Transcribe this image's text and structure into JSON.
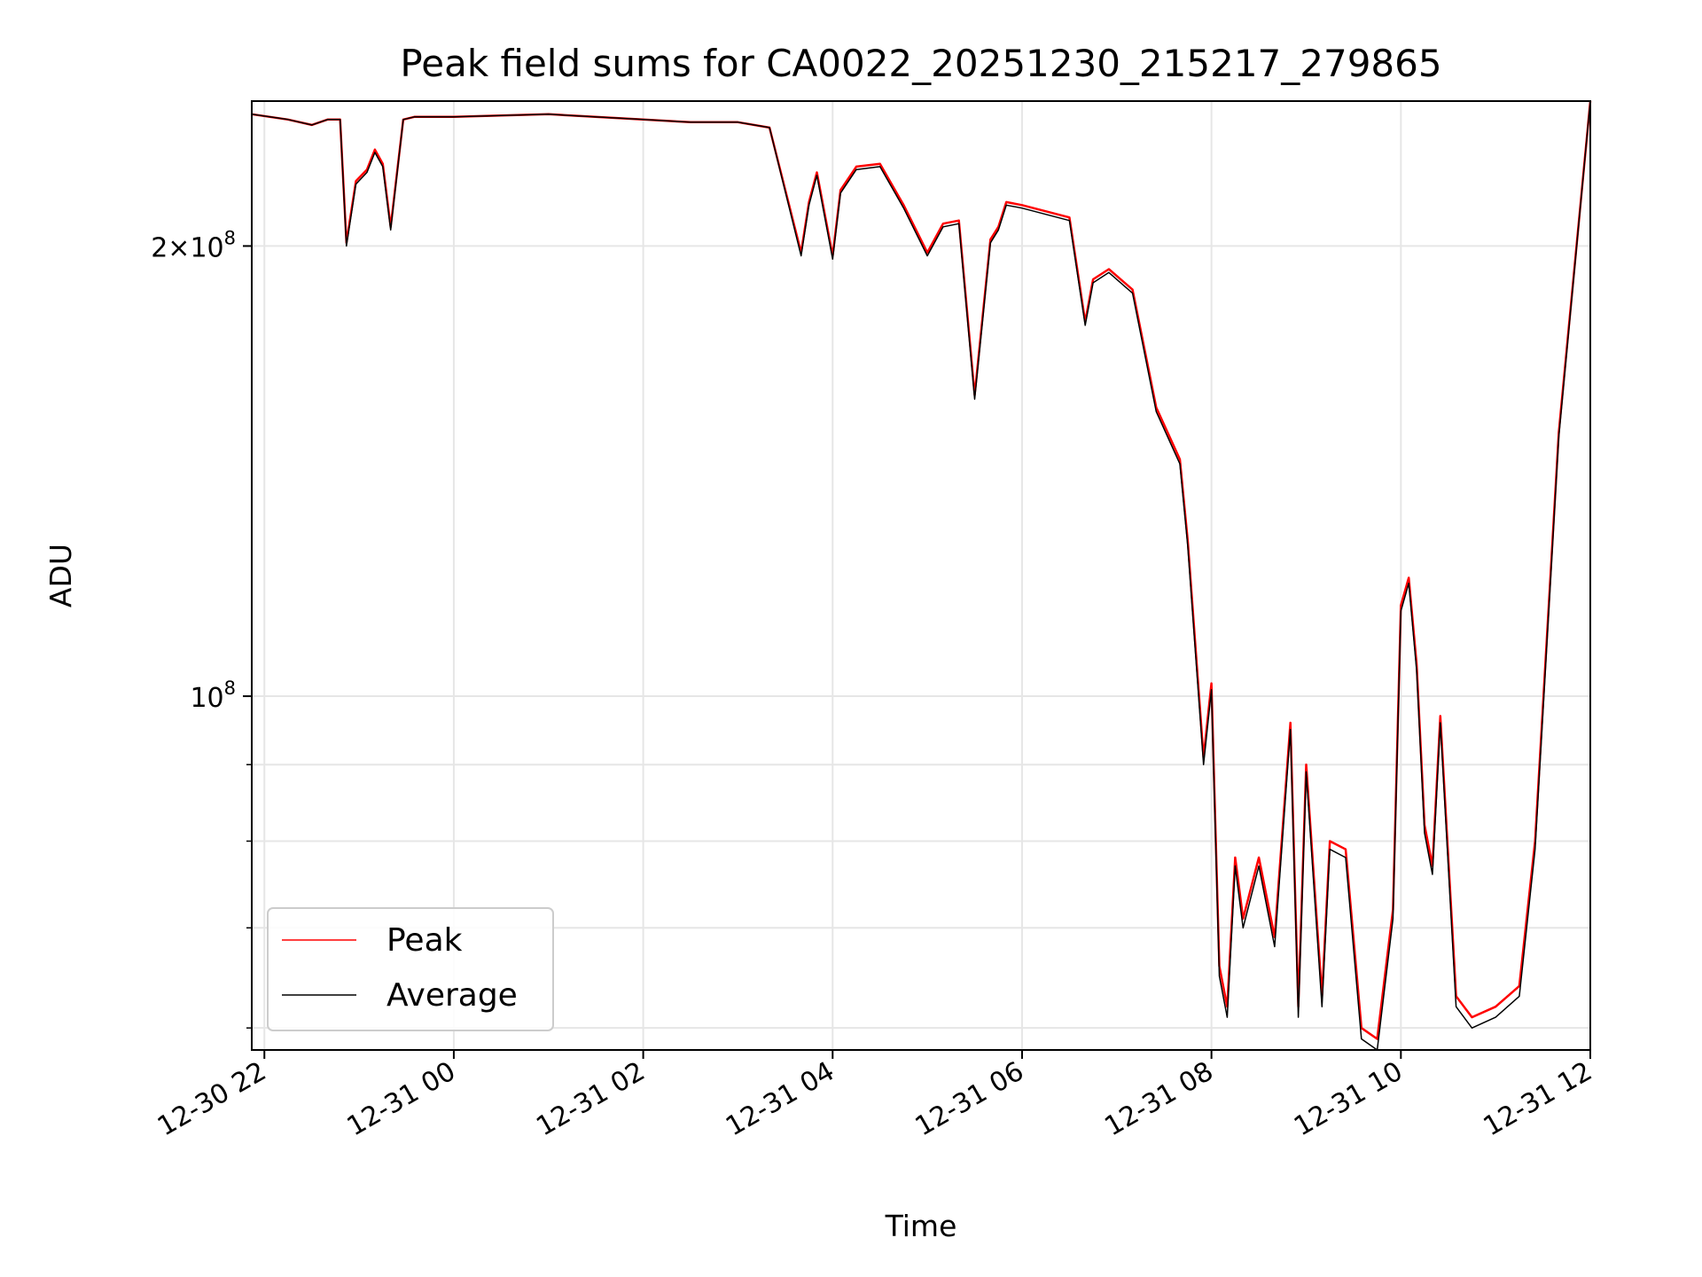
{
  "chart_data": {
    "type": "line",
    "title": "Peak field sums for CA0022_20251230_215217_279865",
    "xlabel": "Time",
    "ylabel": "ADU",
    "y_scale": "log",
    "xlim": [
      "12-30 21:52",
      "12-31 12:00"
    ],
    "ylim": [
      58000000,
      250000000
    ],
    "grid": true,
    "legend_position": "lower left",
    "x_ticks": [
      "12-30 22",
      "12-31 00",
      "12-31 02",
      "12-31 04",
      "12-31 06",
      "12-31 08",
      "12-31 10",
      "12-31 12"
    ],
    "y_ticks": [
      {
        "label_base": "2",
        "label_times": "×",
        "label_exp_base": "10",
        "label_exp": "8",
        "value": 200000000
      },
      {
        "label_base": "",
        "label_times": "",
        "label_exp_base": "10",
        "label_exp": "8",
        "value": 100000000
      }
    ],
    "x": [
      "12-30 21:52",
      "12-30 22:15",
      "12-30 22:30",
      "12-30 22:40",
      "12-30 22:48",
      "12-30 22:52",
      "12-30 22:58",
      "12-30 23:05",
      "12-30 23:10",
      "12-30 23:15",
      "12-30 23:20",
      "12-30 23:28",
      "12-30 23:35",
      "12-31 00:00",
      "12-31 01:00",
      "12-31 02:00",
      "12-31 02:30",
      "12-31 03:00",
      "12-31 03:20",
      "12-31 03:40",
      "12-31 03:45",
      "12-31 03:50",
      "12-31 04:00",
      "12-31 04:05",
      "12-31 04:15",
      "12-31 04:30",
      "12-31 04:45",
      "12-31 05:00",
      "12-31 05:10",
      "12-31 05:20",
      "12-31 05:30",
      "12-31 05:40",
      "12-31 05:45",
      "12-31 05:50",
      "12-31 06:00",
      "12-31 06:30",
      "12-31 06:40",
      "12-31 06:45",
      "12-31 06:55",
      "12-31 07:10",
      "12-31 07:25",
      "12-31 07:40",
      "12-31 07:45",
      "12-31 07:55",
      "12-31 08:00",
      "12-31 08:05",
      "12-31 08:10",
      "12-31 08:15",
      "12-31 08:20",
      "12-31 08:30",
      "12-31 08:40",
      "12-31 08:50",
      "12-31 08:55",
      "12-31 09:00",
      "12-31 09:10",
      "12-31 09:15",
      "12-31 09:25",
      "12-31 09:35",
      "12-31 09:45",
      "12-31 09:55",
      "12-31 10:00",
      "12-31 10:05",
      "12-31 10:10",
      "12-31 10:15",
      "12-31 10:20",
      "12-31 10:25",
      "12-31 10:35",
      "12-31 10:45",
      "12-31 11:00",
      "12-31 11:15",
      "12-31 11:25",
      "12-31 11:40",
      "12-31 12:00"
    ],
    "series": [
      {
        "name": "Peak",
        "color": "#ff0000",
        "values": [
          245000000,
          243000000,
          241000000,
          243000000,
          243000000,
          201000000,
          221000000,
          225000000,
          232000000,
          227000000,
          206000000,
          243000000,
          244000000,
          244000000,
          245000000,
          243000000,
          242000000,
          242000000,
          240000000,
          198000000,
          214000000,
          224000000,
          197000000,
          218000000,
          226000000,
          227000000,
          213000000,
          198000000,
          207000000,
          208000000,
          159000000,
          202000000,
          206000000,
          214000000,
          213000000,
          209000000,
          178000000,
          190000000,
          193000000,
          187000000,
          156000000,
          144000000,
          127000000,
          91000000,
          102000000,
          66000000,
          62000000,
          78000000,
          71000000,
          78000000,
          69000000,
          96000000,
          62000000,
          90000000,
          63000000,
          80000000,
          79000000,
          60000000,
          59000000,
          72000000,
          115000000,
          120000000,
          105000000,
          82000000,
          77000000,
          97000000,
          63000000,
          61000000,
          62000000,
          64000000,
          80000000,
          150000000,
          250000000
        ]
      },
      {
        "name": "Average",
        "color": "#000000",
        "values": [
          245000000,
          243000000,
          241000000,
          243000000,
          243000000,
          200000000,
          220000000,
          224000000,
          231000000,
          226000000,
          205000000,
          243000000,
          244000000,
          244000000,
          245000000,
          243000000,
          242000000,
          242000000,
          240000000,
          197000000,
          213000000,
          223000000,
          196000000,
          217000000,
          225000000,
          226000000,
          212000000,
          197000000,
          206000000,
          207000000,
          158000000,
          201000000,
          205000000,
          213000000,
          212000000,
          208000000,
          177000000,
          189000000,
          192000000,
          186000000,
          155000000,
          143000000,
          126000000,
          90000000,
          101000000,
          65000000,
          61000000,
          77000000,
          70000000,
          77000000,
          68000000,
          95000000,
          61000000,
          89000000,
          62000000,
          79000000,
          78000000,
          59000000,
          58000000,
          71000000,
          114000000,
          119000000,
          104000000,
          81000000,
          76000000,
          96000000,
          62000000,
          60000000,
          61000000,
          63000000,
          79000000,
          149000000,
          250000000
        ]
      }
    ]
  }
}
